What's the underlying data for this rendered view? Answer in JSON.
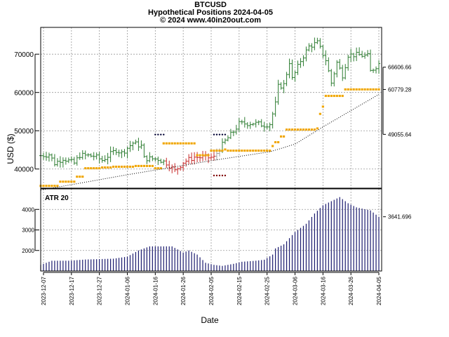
{
  "title_lines": [
    "BTCUSD",
    "Hypothetical Positions 2024-04-05",
    "© 2024 www.40in20out.com"
  ],
  "xlabel": "Date",
  "colors": {
    "up": "#2e7d32",
    "down": "#c62828",
    "neutral": "#9e9e9e",
    "stop": "#f0a500",
    "atr": "#1a1a6e",
    "trend": "#000000",
    "marker_long": "#000033",
    "marker_short": "#800000"
  },
  "chart_data": [
    {
      "type": "line",
      "panel": "price",
      "ylabel": "USD ($)",
      "ylim": [
        35000,
        77000
      ],
      "yticks": [
        40000,
        50000,
        60000,
        70000
      ],
      "right_labels": [
        "66606.66",
        "60779.28",
        "49055.64"
      ],
      "right_values": [
        66606.66,
        60779.28,
        49055.64
      ],
      "x_start": "2023-12-06",
      "x_end": "2024-04-06",
      "grid": true,
      "bar_style": "ohlc",
      "price_anchors": [
        [
          "2023-12-06",
          43500
        ],
        [
          "2023-12-09",
          43800
        ],
        [
          "2023-12-11",
          41500
        ],
        [
          "2023-12-14",
          42800
        ],
        [
          "2023-12-18",
          41500
        ],
        [
          "2023-12-20",
          43600
        ],
        [
          "2023-12-25",
          43400
        ],
        [
          "2023-12-28",
          42300
        ],
        [
          "2024-01-02",
          45000
        ],
        [
          "2024-01-04",
          44200
        ],
        [
          "2024-01-08",
          46800
        ],
        [
          "2024-01-11",
          46000
        ],
        [
          "2024-01-12",
          42800
        ],
        [
          "2024-01-17",
          42600
        ],
        [
          "2024-01-20",
          41600
        ],
        [
          "2024-01-23",
          39500
        ],
        [
          "2024-01-26",
          41800
        ],
        [
          "2024-01-30",
          43100
        ],
        [
          "2024-02-03",
          43000
        ],
        [
          "2024-02-06",
          43000
        ],
        [
          "2024-02-08",
          45300
        ],
        [
          "2024-02-10",
          47300
        ],
        [
          "2024-02-13",
          49800
        ],
        [
          "2024-02-15",
          51800
        ],
        [
          "2024-02-20",
          52000
        ],
        [
          "2024-02-24",
          51500
        ],
        [
          "2024-02-26",
          51800
        ],
        [
          "2024-02-28",
          57000
        ],
        [
          "2024-02-29",
          61500
        ],
        [
          "2024-03-02",
          62000
        ],
        [
          "2024-03-04",
          68000
        ],
        [
          "2024-03-05",
          63500
        ],
        [
          "2024-03-08",
          68300
        ],
        [
          "2024-03-11",
          72000
        ],
        [
          "2024-03-14",
          73000
        ],
        [
          "2024-03-17",
          68500
        ],
        [
          "2024-03-19",
          62500
        ],
        [
          "2024-03-21",
          67800
        ],
        [
          "2024-03-23",
          64500
        ],
        [
          "2024-03-25",
          69800
        ],
        [
          "2024-03-29",
          69800
        ],
        [
          "2024-04-01",
          69500
        ],
        [
          "2024-04-02",
          65500
        ],
        [
          "2024-04-05",
          67500
        ]
      ],
      "red_segment": [
        "2024-01-20",
        "2024-02-06"
      ],
      "stops": [
        [
          "2023-12-06",
          35600
        ],
        [
          "2023-12-13",
          36700
        ],
        [
          "2023-12-19",
          38000
        ],
        [
          "2023-12-22",
          40200
        ],
        [
          "2023-12-28",
          40400
        ],
        [
          "2024-01-01",
          40600
        ],
        [
          "2024-01-09",
          40800
        ],
        [
          "2024-01-16",
          40200
        ],
        [
          "2024-01-19",
          46700
        ],
        [
          "2024-01-31",
          43600
        ],
        [
          "2024-02-05",
          44800
        ],
        [
          "2024-02-10",
          45100
        ],
        [
          "2024-02-11",
          44800
        ],
        [
          "2024-02-27",
          46000
        ],
        [
          "2024-02-28",
          47000
        ],
        [
          "2024-03-01",
          48500
        ],
        [
          "2024-03-03",
          50300
        ],
        [
          "2024-03-14",
          50600
        ],
        [
          "2024-03-15",
          54400
        ],
        [
          "2024-03-16",
          56300
        ],
        [
          "2024-03-17",
          59100
        ],
        [
          "2024-03-24",
          60800
        ],
        [
          "2024-04-05",
          60800
        ]
      ],
      "trend_line": [
        [
          "2023-12-06",
          34500
        ],
        [
          "2024-01-06",
          38500
        ],
        [
          "2024-02-06",
          42300
        ],
        [
          "2024-02-26",
          44500
        ],
        [
          "2024-03-06",
          46500
        ],
        [
          "2024-03-16",
          51000
        ],
        [
          "2024-04-05",
          59500
        ]
      ],
      "markers": [
        {
          "from": "2024-01-16",
          "to": "2024-01-19",
          "y": 49000,
          "kind": "long"
        },
        {
          "from": "2024-02-06",
          "to": "2024-02-10",
          "y": 49000,
          "kind": "long"
        },
        {
          "from": "2024-02-06",
          "to": "2024-02-10",
          "y": 38300,
          "kind": "short"
        }
      ]
    },
    {
      "type": "bar",
      "panel": "atr",
      "series_label": "ATR 20",
      "ylim": [
        1000,
        5000
      ],
      "yticks": [
        2000,
        3000,
        4000
      ],
      "right_labels": [
        "3641.696"
      ],
      "right_values": [
        3641.696
      ],
      "atr_anchors": [
        [
          "2023-12-06",
          1300
        ],
        [
          "2023-12-10",
          1500
        ],
        [
          "2023-12-16",
          1500
        ],
        [
          "2023-12-22",
          1560
        ],
        [
          "2024-01-01",
          1600
        ],
        [
          "2024-01-06",
          1700
        ],
        [
          "2024-01-10",
          2000
        ],
        [
          "2024-01-14",
          2200
        ],
        [
          "2024-01-22",
          2200
        ],
        [
          "2024-01-26",
          1900
        ],
        [
          "2024-01-28",
          2000
        ],
        [
          "2024-01-31",
          1800
        ],
        [
          "2024-02-03",
          1400
        ],
        [
          "2024-02-06",
          1300
        ],
        [
          "2024-02-09",
          1250
        ],
        [
          "2024-02-13",
          1350
        ],
        [
          "2024-02-16",
          1450
        ],
        [
          "2024-02-21",
          1500
        ],
        [
          "2024-02-24",
          1550
        ],
        [
          "2024-02-27",
          1800
        ],
        [
          "2024-02-28",
          2100
        ],
        [
          "2024-03-02",
          2300
        ],
        [
          "2024-03-06",
          2900
        ],
        [
          "2024-03-10",
          3300
        ],
        [
          "2024-03-13",
          3800
        ],
        [
          "2024-03-16",
          4200
        ],
        [
          "2024-03-22",
          4600
        ],
        [
          "2024-03-25",
          4300
        ],
        [
          "2024-03-28",
          4100
        ],
        [
          "2024-04-02",
          3950
        ],
        [
          "2024-04-05",
          3640
        ]
      ],
      "x_ticks": [
        "2023-12-07",
        "2023-12-17",
        "2023-12-27",
        "2024-01-06",
        "2024-01-16",
        "2024-01-26",
        "2024-02-05",
        "2024-02-15",
        "2024-02-25",
        "2024-03-06",
        "2024-03-16",
        "2024-03-26",
        "2024-04-05"
      ]
    }
  ]
}
